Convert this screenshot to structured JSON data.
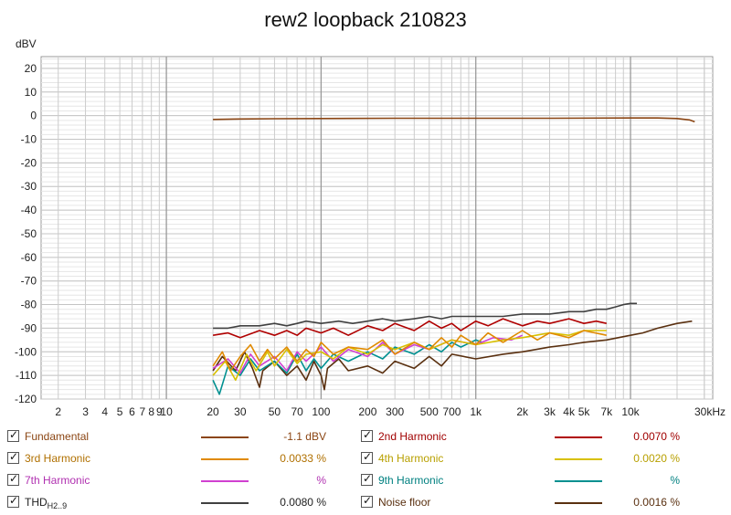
{
  "chart_data": {
    "type": "line",
    "title": "rew2 loopback 210823",
    "ylabel": "dBV",
    "xlabel_unit": "30kHz",
    "xscale": "log",
    "xlim": [
      1.55,
      34000
    ],
    "ylim": [
      -120,
      25
    ],
    "grid": true,
    "x_ticks": [
      {
        "v": 2,
        "label": "2"
      },
      {
        "v": 3,
        "label": "3"
      },
      {
        "v": 4,
        "label": "4"
      },
      {
        "v": 5,
        "label": "5"
      },
      {
        "v": 6,
        "label": "6"
      },
      {
        "v": 7,
        "label": "7"
      },
      {
        "v": 8,
        "label": "8"
      },
      {
        "v": 9,
        "label": "9"
      },
      {
        "v": 10,
        "label": "10"
      },
      {
        "v": 20,
        "label": "20"
      },
      {
        "v": 30,
        "label": "30"
      },
      {
        "v": 50,
        "label": "50"
      },
      {
        "v": 70,
        "label": "70"
      },
      {
        "v": 100,
        "label": "100"
      },
      {
        "v": 200,
        "label": "200"
      },
      {
        "v": 300,
        "label": "300"
      },
      {
        "v": 500,
        "label": "500"
      },
      {
        "v": 700,
        "label": "700"
      },
      {
        "v": 1000,
        "label": "1k"
      },
      {
        "v": 2000,
        "label": "2k"
      },
      {
        "v": 3000,
        "label": "3k"
      },
      {
        "v": 4000,
        "label": "4k"
      },
      {
        "v": 5000,
        "label": "5k"
      },
      {
        "v": 7000,
        "label": "7k"
      },
      {
        "v": 10000,
        "label": "10k"
      }
    ],
    "y_ticks": [
      20,
      10,
      0,
      -10,
      -20,
      -30,
      -40,
      -50,
      -60,
      -70,
      -80,
      -90,
      -100,
      -110,
      -120
    ],
    "y_tick_labels": [
      "20",
      "10",
      "0",
      "-10",
      "-20",
      "-30",
      "-40",
      "-50",
      "-60",
      "-70",
      "-80",
      "-90",
      "-100",
      "-110",
      "-120"
    ],
    "series": [
      {
        "name": "Fundamental",
        "color": "#8b4513",
        "value": "-1.1 dBV",
        "points": [
          [
            20,
            -1.6
          ],
          [
            30,
            -1.4
          ],
          [
            50,
            -1.3
          ],
          [
            100,
            -1.2
          ],
          [
            300,
            -1.1
          ],
          [
            1000,
            -1.1
          ],
          [
            3000,
            -1.1
          ],
          [
            10000,
            -1.0
          ],
          [
            15000,
            -1.0
          ],
          [
            20000,
            -1.2
          ],
          [
            24000,
            -1.8
          ],
          [
            26000,
            -2.6
          ]
        ]
      },
      {
        "name": "2nd Harmonic",
        "color": "#b00000",
        "value": "0.0070 %",
        "points": [
          [
            20,
            -93
          ],
          [
            25,
            -92
          ],
          [
            30,
            -94
          ],
          [
            40,
            -91
          ],
          [
            50,
            -93
          ],
          [
            60,
            -91
          ],
          [
            70,
            -93
          ],
          [
            80,
            -90
          ],
          [
            100,
            -92
          ],
          [
            120,
            -90
          ],
          [
            150,
            -93
          ],
          [
            200,
            -89
          ],
          [
            250,
            -91
          ],
          [
            300,
            -88
          ],
          [
            400,
            -91
          ],
          [
            500,
            -87
          ],
          [
            600,
            -90
          ],
          [
            700,
            -88
          ],
          [
            800,
            -91
          ],
          [
            1000,
            -87
          ],
          [
            1200,
            -89
          ],
          [
            1500,
            -86
          ],
          [
            2000,
            -89
          ],
          [
            2500,
            -87
          ],
          [
            3000,
            -88
          ],
          [
            4000,
            -86
          ],
          [
            5000,
            -88
          ],
          [
            6000,
            -87
          ],
          [
            7000,
            -88
          ]
        ]
      },
      {
        "name": "3rd Harmonic",
        "color": "#e08a00",
        "value": "0.0033 %",
        "points": [
          [
            20,
            -106
          ],
          [
            23,
            -100
          ],
          [
            26,
            -108
          ],
          [
            30,
            -102
          ],
          [
            35,
            -97
          ],
          [
            40,
            -104
          ],
          [
            45,
            -99
          ],
          [
            50,
            -103
          ],
          [
            60,
            -98
          ],
          [
            70,
            -104
          ],
          [
            80,
            -99
          ],
          [
            90,
            -102
          ],
          [
            100,
            -96
          ],
          [
            120,
            -101
          ],
          [
            150,
            -98
          ],
          [
            200,
            -99
          ],
          [
            250,
            -95
          ],
          [
            300,
            -101
          ],
          [
            400,
            -96
          ],
          [
            500,
            -99
          ],
          [
            600,
            -94
          ],
          [
            700,
            -98
          ],
          [
            800,
            -93
          ],
          [
            1000,
            -97
          ],
          [
            1200,
            -92
          ],
          [
            1500,
            -96
          ],
          [
            2000,
            -91
          ],
          [
            2500,
            -95
          ],
          [
            3000,
            -92
          ],
          [
            4000,
            -94
          ],
          [
            5000,
            -91
          ],
          [
            7000,
            -93
          ]
        ]
      },
      {
        "name": "4th Harmonic",
        "color": "#d8c000",
        "value": "0.0020 %",
        "points": [
          [
            20,
            -110
          ],
          [
            24,
            -104
          ],
          [
            28,
            -112
          ],
          [
            33,
            -101
          ],
          [
            38,
            -108
          ],
          [
            45,
            -100
          ],
          [
            50,
            -106
          ],
          [
            60,
            -99
          ],
          [
            70,
            -105
          ],
          [
            80,
            -101
          ],
          [
            100,
            -100
          ],
          [
            120,
            -103
          ],
          [
            150,
            -98
          ],
          [
            200,
            -101
          ],
          [
            250,
            -97
          ],
          [
            300,
            -99
          ],
          [
            400,
            -96
          ],
          [
            500,
            -99
          ],
          [
            700,
            -95
          ],
          [
            1000,
            -97
          ],
          [
            1500,
            -95
          ],
          [
            2000,
            -94
          ],
          [
            3000,
            -92
          ],
          [
            4000,
            -93
          ],
          [
            5000,
            -91
          ],
          [
            7000,
            -91
          ]
        ]
      },
      {
        "name": "7th Harmonic",
        "color": "#d040d0",
        "value": "%",
        "points": [
          [
            20,
            -107
          ],
          [
            25,
            -103
          ],
          [
            30,
            -109
          ],
          [
            35,
            -101
          ],
          [
            40,
            -106
          ],
          [
            50,
            -102
          ],
          [
            60,
            -108
          ],
          [
            70,
            -100
          ],
          [
            80,
            -104
          ],
          [
            100,
            -98
          ],
          [
            120,
            -104
          ],
          [
            150,
            -99
          ],
          [
            200,
            -102
          ],
          [
            250,
            -96
          ],
          [
            300,
            -101
          ],
          [
            400,
            -97
          ],
          [
            500,
            -99
          ],
          [
            700,
            -95
          ],
          [
            1000,
            -97
          ],
          [
            1300,
            -94
          ],
          [
            1700,
            -95
          ],
          [
            2000,
            -93
          ]
        ]
      },
      {
        "name": "9th Harmonic",
        "color": "#009090",
        "value": "%",
        "points": [
          [
            20,
            -112
          ],
          [
            22,
            -118
          ],
          [
            25,
            -106
          ],
          [
            30,
            -110
          ],
          [
            35,
            -103
          ],
          [
            40,
            -108
          ],
          [
            50,
            -104
          ],
          [
            60,
            -109
          ],
          [
            70,
            -101
          ],
          [
            80,
            -108
          ],
          [
            90,
            -103
          ],
          [
            100,
            -107
          ],
          [
            120,
            -101
          ],
          [
            150,
            -104
          ],
          [
            200,
            -100
          ],
          [
            250,
            -103
          ],
          [
            300,
            -98
          ],
          [
            400,
            -101
          ],
          [
            500,
            -97
          ],
          [
            600,
            -100
          ],
          [
            700,
            -96
          ],
          [
            800,
            -98
          ],
          [
            1000,
            -95
          ],
          [
            1100,
            -96
          ]
        ]
      },
      {
        "name": "THD",
        "name_sub": "H2..9",
        "color": "#404040",
        "value": "0.0080 %",
        "points": [
          [
            20,
            -90
          ],
          [
            25,
            -90
          ],
          [
            30,
            -89
          ],
          [
            40,
            -89
          ],
          [
            50,
            -88
          ],
          [
            60,
            -89
          ],
          [
            70,
            -88
          ],
          [
            80,
            -87
          ],
          [
            100,
            -88
          ],
          [
            130,
            -87
          ],
          [
            160,
            -88
          ],
          [
            200,
            -87
          ],
          [
            250,
            -86
          ],
          [
            300,
            -87
          ],
          [
            400,
            -86
          ],
          [
            500,
            -85
          ],
          [
            600,
            -86
          ],
          [
            700,
            -85
          ],
          [
            1000,
            -85
          ],
          [
            1500,
            -85
          ],
          [
            2000,
            -84
          ],
          [
            3000,
            -84
          ],
          [
            4000,
            -83
          ],
          [
            5000,
            -83
          ],
          [
            6000,
            -82
          ],
          [
            7000,
            -82
          ],
          [
            8000,
            -81
          ],
          [
            9000,
            -80
          ],
          [
            10000,
            -79.5
          ],
          [
            11000,
            -79.5
          ]
        ]
      },
      {
        "name": "Noise floor",
        "color": "#5a3010",
        "value": "0.0016 %",
        "points": [
          [
            20,
            -108
          ],
          [
            23,
            -102
          ],
          [
            28,
            -108
          ],
          [
            32,
            -100
          ],
          [
            36,
            -107
          ],
          [
            40,
            -115
          ],
          [
            42,
            -108
          ],
          [
            50,
            -104
          ],
          [
            60,
            -110
          ],
          [
            70,
            -106
          ],
          [
            80,
            -112
          ],
          [
            90,
            -104
          ],
          [
            100,
            -110
          ],
          [
            105,
            -116
          ],
          [
            110,
            -107
          ],
          [
            130,
            -103
          ],
          [
            150,
            -108
          ],
          [
            200,
            -106
          ],
          [
            250,
            -109
          ],
          [
            300,
            -104
          ],
          [
            400,
            -107
          ],
          [
            500,
            -102
          ],
          [
            600,
            -106
          ],
          [
            700,
            -101
          ],
          [
            1000,
            -103
          ],
          [
            1500,
            -101
          ],
          [
            2000,
            -100
          ],
          [
            3000,
            -98
          ],
          [
            4000,
            -97
          ],
          [
            5000,
            -96
          ],
          [
            7000,
            -95
          ],
          [
            10000,
            -93
          ],
          [
            12000,
            -92
          ],
          [
            15000,
            -90
          ],
          [
            20000,
            -88
          ],
          [
            25000,
            -87
          ]
        ]
      }
    ]
  },
  "legend": {
    "rows": [
      [
        {
          "name": "Fundamental",
          "value": "-1.1 dBV",
          "color": "#8b4513",
          "text_color": "#8b4513"
        },
        {
          "name": "2nd Harmonic",
          "value": "0.0070 %",
          "color": "#b00000",
          "text_color": "#a00000"
        }
      ],
      [
        {
          "name": "3rd Harmonic",
          "value": "0.0033 %",
          "color": "#e08a00",
          "text_color": "#b07000"
        },
        {
          "name": "4th Harmonic",
          "value": "0.0020 %",
          "color": "#d8c000",
          "text_color": "#b8a000"
        }
      ],
      [
        {
          "name": "7th Harmonic",
          "value": "%",
          "color": "#d040d0",
          "text_color": "#b030b0"
        },
        {
          "name": "9th Harmonic",
          "value": "%",
          "color": "#009090",
          "text_color": "#008080"
        }
      ],
      [
        {
          "name": "THD",
          "name_sub": "H2..9",
          "value": "0.0080 %",
          "color": "#404040",
          "text_color": "#222222"
        },
        {
          "name": "Noise floor",
          "value": "0.0016 %",
          "color": "#5a3010",
          "text_color": "#5a3010"
        }
      ]
    ]
  }
}
